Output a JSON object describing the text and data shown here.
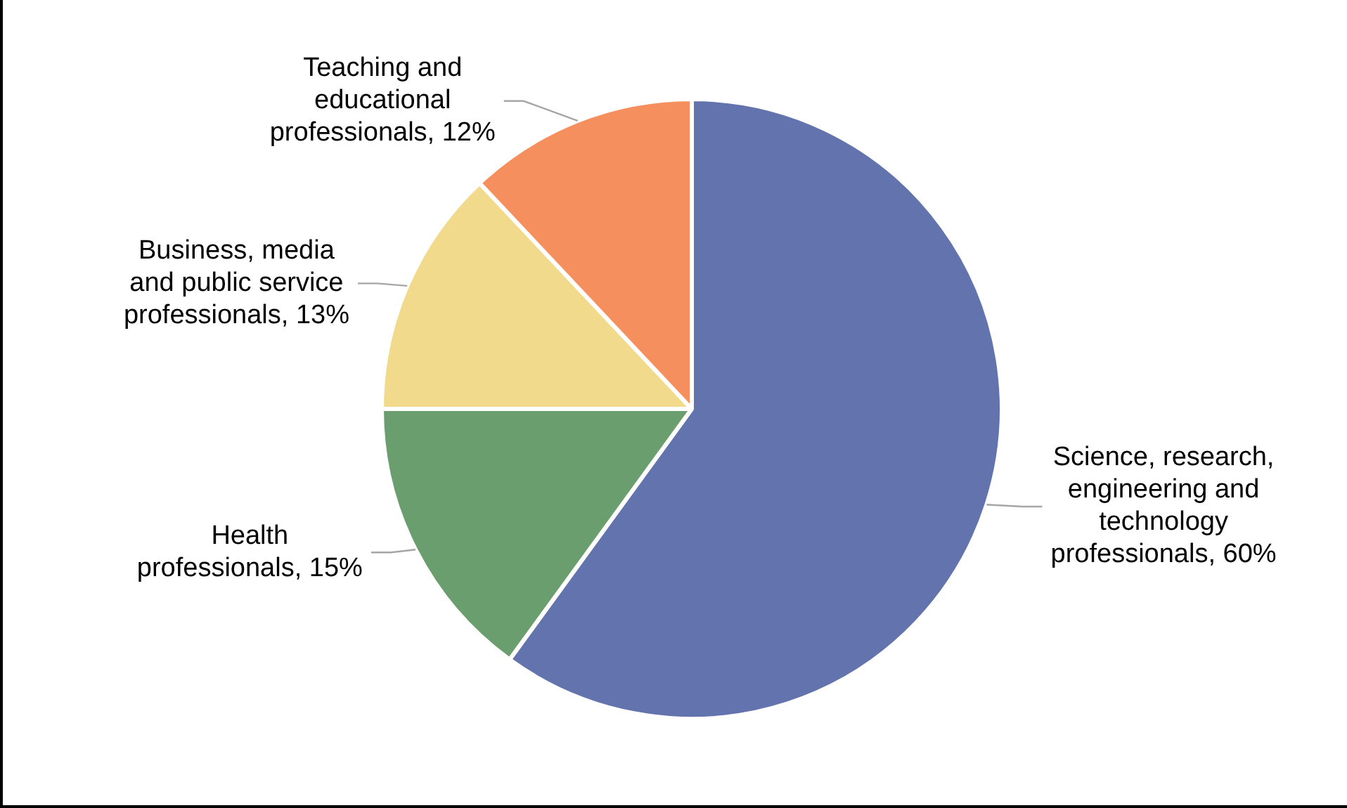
{
  "chart_data": {
    "type": "pie",
    "categories": [
      "Science, research, engineering and technology professionals",
      "Health professionals",
      "Business, media and public service professionals",
      "Teaching and educational professionals"
    ],
    "values": [
      60,
      15,
      13,
      12
    ],
    "value_labels": [
      "60%",
      "15%",
      "13%",
      "12%"
    ],
    "colors": [
      "#6273ad",
      "#6a9e6f",
      "#f2da8c",
      "#f5905e"
    ],
    "legend": false
  }
}
